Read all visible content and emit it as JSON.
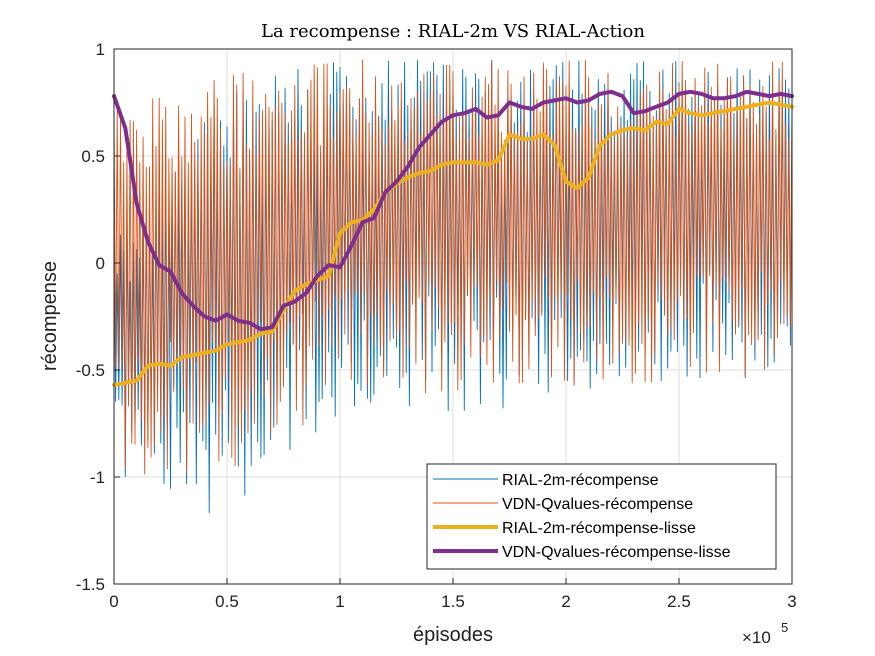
{
  "chart_data": {
    "type": "line",
    "title": "La recompense : RIAL-2m VS RIAL-Action",
    "xlabel": "épisodes",
    "ylabel": "récompense",
    "x_multiplier_label": "×10",
    "x_multiplier_exp": "5",
    "xlim": [
      0,
      300000
    ],
    "ylim": [
      -1.5,
      1
    ],
    "xticks": [
      0,
      50000,
      100000,
      150000,
      200000,
      250000,
      300000
    ],
    "xtick_labels": [
      "0",
      "0.5",
      "1",
      "1.5",
      "2",
      "2.5",
      "3"
    ],
    "yticks": [
      -1.5,
      -1,
      -0.5,
      0,
      0.5,
      1
    ],
    "ytick_labels": [
      "-1.5",
      "-1",
      "-0.5",
      "0",
      "0.5",
      "1"
    ],
    "grid": true,
    "legend_position": "bottom-right",
    "series": [
      {
        "name": "RIAL-2m-récompense",
        "color": "#0072BD",
        "style": "noisy",
        "upper_envelope_x": [
          0,
          50000,
          100000,
          150000,
          200000,
          250000,
          300000
        ],
        "upper_envelope_y": [
          0.1,
          0.9,
          0.95,
          0.95,
          0.95,
          0.95,
          0.95
        ],
        "lower_envelope_x": [
          0,
          50000,
          100000,
          150000,
          200000,
          250000,
          300000
        ],
        "lower_envelope_y": [
          -1.0,
          -1.2,
          -0.7,
          -0.7,
          -0.65,
          -0.55,
          -0.55
        ]
      },
      {
        "name": "VDN-Qvalues-récompense",
        "color": "#D95319",
        "style": "noisy",
        "upper_envelope_x": [
          0,
          50000,
          100000,
          150000,
          200000,
          250000,
          300000
        ],
        "upper_envelope_y": [
          0.85,
          0.9,
          0.95,
          0.95,
          0.95,
          0.95,
          0.95
        ],
        "lower_envelope_x": [
          0,
          50000,
          100000,
          150000,
          200000,
          250000,
          300000
        ],
        "lower_envelope_y": [
          -1.0,
          -1.0,
          -0.65,
          -0.6,
          -0.6,
          -0.55,
          -0.55
        ]
      },
      {
        "name": "RIAL-2m-récompense-lisse",
        "color": "#EDB120",
        "style": "smooth",
        "x": [
          0,
          5000,
          10000,
          15000,
          20000,
          25000,
          30000,
          35000,
          40000,
          45000,
          50000,
          55000,
          60000,
          65000,
          70000,
          75000,
          80000,
          85000,
          90000,
          95000,
          100000,
          105000,
          110000,
          115000,
          120000,
          125000,
          130000,
          135000,
          140000,
          145000,
          150000,
          155000,
          160000,
          165000,
          170000,
          175000,
          180000,
          185000,
          190000,
          195000,
          200000,
          205000,
          210000,
          215000,
          220000,
          225000,
          230000,
          235000,
          240000,
          245000,
          250000,
          255000,
          260000,
          265000,
          270000,
          275000,
          280000,
          285000,
          290000,
          295000,
          300000
        ],
        "y": [
          -0.57,
          -0.56,
          -0.55,
          -0.48,
          -0.47,
          -0.48,
          -0.44,
          -0.43,
          -0.42,
          -0.41,
          -0.38,
          -0.37,
          -0.36,
          -0.33,
          -0.32,
          -0.22,
          -0.13,
          -0.1,
          -0.08,
          -0.06,
          0.14,
          0.19,
          0.2,
          0.25,
          0.33,
          0.37,
          0.4,
          0.42,
          0.43,
          0.46,
          0.47,
          0.47,
          0.47,
          0.46,
          0.48,
          0.6,
          0.58,
          0.58,
          0.6,
          0.55,
          0.38,
          0.35,
          0.4,
          0.55,
          0.6,
          0.62,
          0.63,
          0.62,
          0.66,
          0.65,
          0.72,
          0.7,
          0.69,
          0.7,
          0.71,
          0.72,
          0.73,
          0.74,
          0.75,
          0.74,
          0.73
        ]
      },
      {
        "name": "VDN-Qvalues-récompense-lisse",
        "color": "#7E2F8E",
        "style": "smooth",
        "x": [
          0,
          5000,
          10000,
          15000,
          20000,
          25000,
          30000,
          35000,
          40000,
          45000,
          50000,
          55000,
          60000,
          65000,
          70000,
          75000,
          80000,
          85000,
          90000,
          95000,
          100000,
          105000,
          110000,
          115000,
          120000,
          125000,
          130000,
          135000,
          140000,
          145000,
          150000,
          155000,
          160000,
          165000,
          170000,
          175000,
          180000,
          185000,
          190000,
          195000,
          200000,
          205000,
          210000,
          215000,
          220000,
          225000,
          230000,
          235000,
          240000,
          245000,
          250000,
          255000,
          260000,
          265000,
          270000,
          275000,
          280000,
          285000,
          290000,
          295000,
          300000
        ],
        "y": [
          0.78,
          0.63,
          0.28,
          0.1,
          -0.01,
          -0.04,
          -0.14,
          -0.2,
          -0.25,
          -0.27,
          -0.24,
          -0.27,
          -0.28,
          -0.31,
          -0.3,
          -0.2,
          -0.18,
          -0.14,
          -0.06,
          -0.01,
          -0.02,
          0.08,
          0.19,
          0.21,
          0.33,
          0.38,
          0.45,
          0.54,
          0.6,
          0.66,
          0.69,
          0.7,
          0.72,
          0.68,
          0.69,
          0.75,
          0.73,
          0.72,
          0.75,
          0.76,
          0.77,
          0.75,
          0.76,
          0.79,
          0.8,
          0.78,
          0.7,
          0.71,
          0.73,
          0.75,
          0.79,
          0.8,
          0.79,
          0.77,
          0.77,
          0.78,
          0.8,
          0.79,
          0.78,
          0.79,
          0.78
        ]
      }
    ]
  }
}
